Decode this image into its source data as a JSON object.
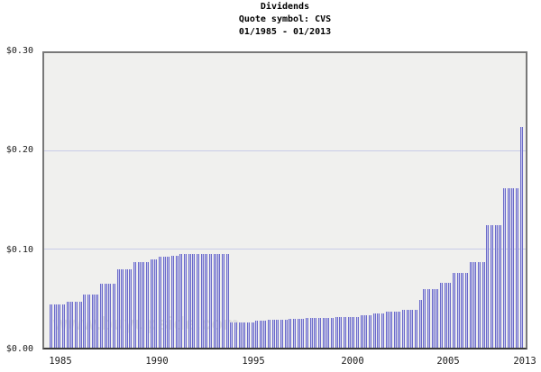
{
  "title": {
    "line1": "Dividends",
    "line2": "Quote symbol: CVS",
    "line3": "01/1985 - 01/2013"
  },
  "watermark": "www.buyupside.com",
  "chart_data": {
    "type": "bar",
    "title": "Dividends",
    "subtitle": "Quote symbol: CVS",
    "date_range": "01/1985 - 01/2013",
    "period": "quarterly",
    "start_year": 1985,
    "quarters_per_year": 4,
    "ylim": [
      0,
      0.3
    ],
    "grid": "horizontal gridlines at 0.10 and 0.20",
    "gridline_values": [
      0.1,
      0.2
    ],
    "yticks": {
      "values": [
        0,
        0.1,
        0.2,
        0.3
      ],
      "labels": [
        "$0.00",
        "$0.10",
        "$0.20",
        "$0.30"
      ],
      "page_y_centers": [
        388,
        277.5,
        167,
        57
      ]
    },
    "xticks": {
      "labels": [
        "1985",
        "1990",
        "1995",
        "2000",
        "2005",
        "2013"
      ],
      "page_x_centers": [
        67,
        174,
        281,
        391,
        497,
        582
      ]
    },
    "values": [
      0.044,
      0.044,
      0.044,
      0.044,
      0.047,
      0.047,
      0.047,
      0.047,
      0.054,
      0.054,
      0.054,
      0.054,
      0.065,
      0.065,
      0.065,
      0.065,
      0.08,
      0.08,
      0.08,
      0.08,
      0.0875,
      0.0875,
      0.0875,
      0.0875,
      0.09,
      0.09,
      0.0925,
      0.0925,
      0.0925,
      0.094,
      0.094,
      0.095,
      0.095,
      0.095,
      0.095,
      0.095,
      0.095,
      0.095,
      0.095,
      0.095,
      0.095,
      0.095,
      0.095,
      0.026,
      0.026,
      0.026,
      0.026,
      0.026,
      0.026,
      0.0275,
      0.0275,
      0.0275,
      0.0285,
      0.0285,
      0.0285,
      0.0285,
      0.0285,
      0.029,
      0.029,
      0.029,
      0.029,
      0.03,
      0.03,
      0.03,
      0.03,
      0.03,
      0.03,
      0.03,
      0.031,
      0.031,
      0.031,
      0.031,
      0.031,
      0.031,
      0.033,
      0.033,
      0.033,
      0.035,
      0.035,
      0.035,
      0.03625,
      0.03625,
      0.03625,
      0.03625,
      0.03875,
      0.03875,
      0.03875,
      0.03875,
      0.04875,
      0.06,
      0.06,
      0.06,
      0.06,
      0.066,
      0.066,
      0.066,
      0.07625,
      0.07625,
      0.07625,
      0.07625,
      0.0875,
      0.0875,
      0.0875,
      0.0875,
      0.125,
      0.125,
      0.125,
      0.125,
      0.1625,
      0.1625,
      0.1625,
      0.1625,
      0.225
    ],
    "colors": {
      "plot_background": "#f0f0ee",
      "gridline": "#c9cce8",
      "bar_edge": "#6b6bc8",
      "bar_fill": "#c4c4f0",
      "text": "#1a1a1a",
      "watermark": "#dedede",
      "border": "#787878"
    }
  }
}
